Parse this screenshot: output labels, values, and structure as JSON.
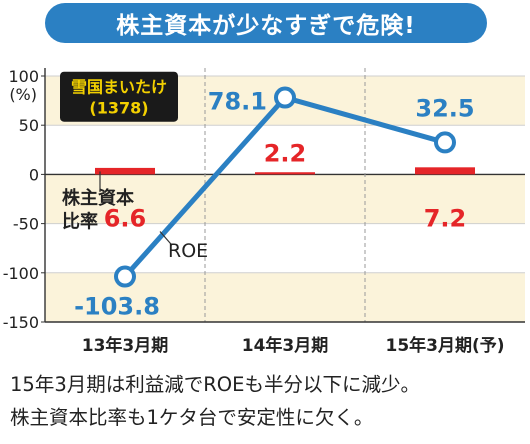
{
  "title": "株主資本が少なすぎで危険!",
  "company": {
    "name": "雪国まいたけ",
    "code": "(1378)"
  },
  "chart_data": {
    "type": "bar+line",
    "categories": [
      "13年3月期",
      "14年3月期",
      "15年3月期(予)"
    ],
    "ylim": [
      -150,
      100
    ],
    "yticks": [
      100,
      50,
      0,
      -50,
      -100,
      -150
    ],
    "y_unit": "(%)",
    "series": [
      {
        "name": "株主資本比率",
        "kind": "bar",
        "color": "#e52528",
        "values": [
          6.6,
          2.2,
          7.2
        ],
        "labels": [
          "6.6",
          "2.2",
          "7.2"
        ]
      },
      {
        "name": "ROE",
        "kind": "line",
        "color": "#2b80c3",
        "values": [
          -103.8,
          78.1,
          32.5
        ],
        "labels": [
          "-103.8",
          "78.1",
          "32.5"
        ]
      }
    ],
    "grid": true,
    "bands": [
      "#fbf3da",
      "#ffffff"
    ]
  },
  "annotations": {
    "equity_ratio_line1": "株主資本",
    "equity_ratio_line2": "比率",
    "roe": "ROE"
  },
  "caption": {
    "line1": "15年3月期は利益減でROEも半分以下に減少。",
    "line2": "株主資本比率も1ケタ台で安定性に欠く。"
  }
}
